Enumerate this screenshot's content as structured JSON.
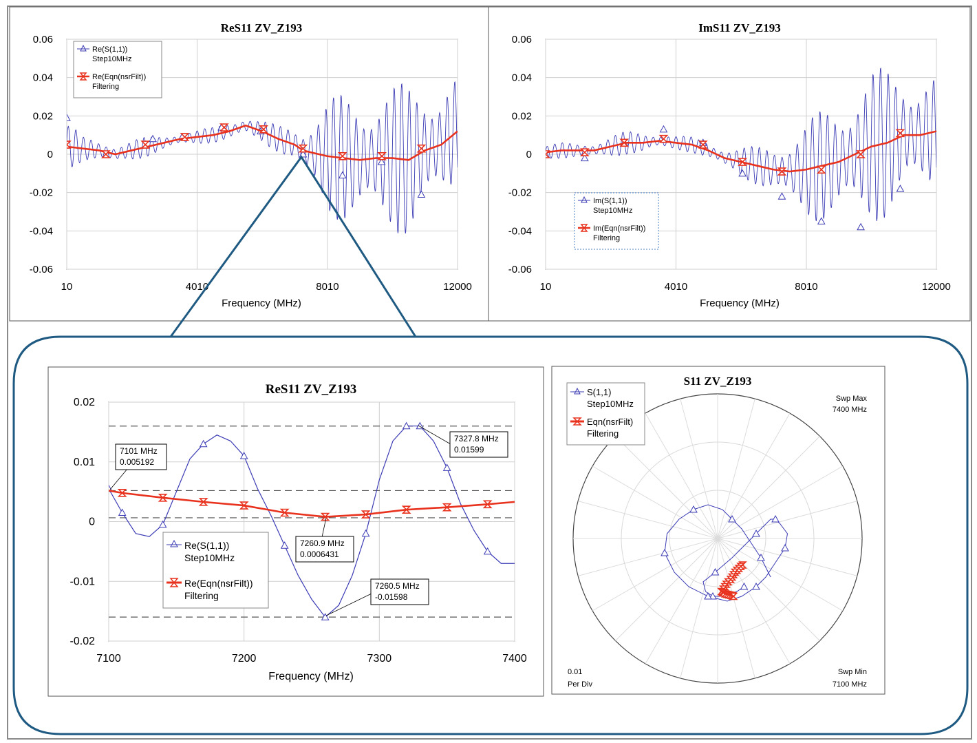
{
  "colors": {
    "measured": "#3b3bb5",
    "filtered": "#e8321e",
    "frame": "#8a8a8a",
    "callout": "#1f5a82",
    "grid": "#cfcfcf"
  },
  "chart_data": [
    {
      "id": "re_full",
      "type": "line",
      "title": "ReS11 ZV_Z193",
      "xlabel": "Frequency (MHz)",
      "ylabel": "",
      "xlim": [
        10,
        12000
      ],
      "ylim": [
        -0.06,
        0.06
      ],
      "x_ticks": [
        "10",
        "4010",
        "8010",
        "12000"
      ],
      "x_tick_values": [
        10,
        4010,
        8010,
        12000
      ],
      "y_ticks": [
        "0.06",
        "0.04",
        "0.02",
        "0",
        "-0.02",
        "-0.04",
        "-0.06"
      ],
      "y_tick_values": [
        0.06,
        0.04,
        0.02,
        0,
        -0.02,
        -0.04,
        -0.06
      ],
      "grid": true,
      "legend": {
        "position": "top-left",
        "entries": [
          {
            "label": "Re(S(1,1))",
            "sub": "Step10MHz",
            "series": "measured"
          },
          {
            "label": "Re(Eqn(nsrFilt))",
            "sub": "Filtering",
            "series": "filtered"
          }
        ]
      },
      "series": [
        {
          "name": "Re(S(1,1)) Step10MHz",
          "color": "#3b3bb5",
          "marker": "triangle",
          "x": [
            10,
            500,
            1000,
            1500,
            2000,
            2500,
            3000,
            3500,
            4000,
            4500,
            5000,
            5500,
            6000,
            6500,
            7000,
            7260,
            7500,
            8000,
            8500,
            9000,
            9500,
            10000,
            10500,
            11000,
            11500,
            12000
          ],
          "amp": [
            0.015,
            0.006,
            0.005,
            0.006,
            0.006,
            0.005,
            0.004,
            0.004,
            0.004,
            0.004,
            0.005,
            0.006,
            0.006,
            0.007,
            0.01,
            0.014,
            0.02,
            0.03,
            0.034,
            0.036,
            0.038,
            0.039,
            0.04,
            0.039,
            0.036,
            0.03
          ],
          "markers_x": [
            10,
            2650,
            3550,
            4760,
            5960,
            7260,
            8470,
            9670,
            10890
          ],
          "markers_y": [
            0.019,
            0.008,
            0.009,
            0.014,
            0.012,
            0.0,
            -0.011,
            -0.004,
            -0.021
          ]
        },
        {
          "name": "Re(Eqn(nsrFilt)) Filtering",
          "color": "#e8321e",
          "marker": "hourglass",
          "x": [
            10,
            500,
            1000,
            1500,
            2000,
            2500,
            3000,
            3500,
            4000,
            4500,
            5000,
            5500,
            6000,
            6500,
            7000,
            7260,
            7500,
            8000,
            8500,
            9000,
            9500,
            10000,
            10500,
            11000,
            11500,
            12000
          ],
          "y": [
            0.004,
            0.003,
            0.002,
            0.0,
            0.002,
            0.004,
            0.006,
            0.008,
            0.009,
            0.01,
            0.012,
            0.015,
            0.012,
            0.008,
            0.005,
            0.002,
            0.001,
            -0.001,
            -0.002,
            -0.003,
            -0.002,
            -0.002,
            -0.003,
            0.002,
            0.005,
            0.012
          ],
          "markers_x": [
            10,
            1210,
            2420,
            3630,
            4840,
            6050,
            7260,
            8470,
            9680,
            10890
          ],
          "markers_y": [
            0.005,
            0.0,
            0.005,
            0.009,
            0.014,
            0.013,
            0.003,
            -0.001,
            -0.001,
            0.003
          ]
        }
      ]
    },
    {
      "id": "im_full",
      "type": "line",
      "title": "ImS11 ZV_Z193",
      "xlabel": "Frequency (MHz)",
      "ylabel": "",
      "xlim": [
        10,
        12000
      ],
      "ylim": [
        -0.06,
        0.06
      ],
      "x_ticks": [
        "10",
        "4010",
        "8010",
        "12000"
      ],
      "x_tick_values": [
        10,
        4010,
        8010,
        12000
      ],
      "y_ticks": [
        "0.06",
        "0.04",
        "0.02",
        "0",
        "-0.02",
        "-0.04",
        "-0.06"
      ],
      "y_tick_values": [
        0.06,
        0.04,
        0.02,
        0,
        -0.02,
        -0.04,
        -0.06
      ],
      "grid": true,
      "legend": {
        "position": "bottom-left",
        "entries": [
          {
            "label": "Im(S(1,1))",
            "sub": "Step10MHz",
            "series": "measured"
          },
          {
            "label": "Im(Eqn(nsrFilt))",
            "sub": "Filtering",
            "series": "filtered"
          }
        ]
      },
      "series": [
        {
          "name": "Im(S(1,1)) Step10MHz",
          "color": "#3b3bb5",
          "marker": "triangle",
          "x": [
            10,
            500,
            1000,
            1500,
            2000,
            2500,
            3000,
            3500,
            4000,
            4500,
            5000,
            5500,
            6000,
            6500,
            7000,
            7500,
            8000,
            8500,
            9000,
            9500,
            10000,
            10500,
            11000,
            11500,
            12000
          ],
          "center": [
            0.001,
            0.002,
            0.002,
            0.002,
            0.004,
            0.006,
            0.006,
            0.007,
            0.006,
            0.005,
            0.002,
            -0.002,
            -0.004,
            -0.006,
            -0.008,
            -0.009,
            -0.008,
            -0.006,
            -0.004,
            0.0,
            0.004,
            0.006,
            0.01,
            0.01,
            0.012
          ],
          "amp": [
            0.004,
            0.004,
            0.004,
            0.005,
            0.006,
            0.006,
            0.006,
            0.005,
            0.004,
            0.004,
            0.005,
            0.006,
            0.008,
            0.01,
            0.014,
            0.02,
            0.025,
            0.03,
            0.034,
            0.037,
            0.04,
            0.04,
            0.038,
            0.035,
            0.03
          ],
          "markers_x": [
            10,
            1210,
            2420,
            3630,
            4840,
            6050,
            7260,
            8470,
            9680,
            10890
          ],
          "markers_y": [
            0.0,
            -0.002,
            0.006,
            0.013,
            0.006,
            -0.01,
            -0.022,
            -0.035,
            -0.038,
            -0.018
          ]
        },
        {
          "name": "Im(Eqn(nsrFilt)) Filtering",
          "color": "#e8321e",
          "marker": "hourglass",
          "x": [
            10,
            500,
            1000,
            1500,
            2000,
            2500,
            3000,
            3500,
            4000,
            4500,
            5000,
            5500,
            6000,
            6500,
            7000,
            7500,
            8000,
            8500,
            9000,
            9500,
            10000,
            10500,
            11000,
            11500,
            12000
          ],
          "y": [
            0.001,
            0.002,
            0.002,
            0.002,
            0.004,
            0.006,
            0.006,
            0.007,
            0.006,
            0.005,
            0.002,
            -0.002,
            -0.004,
            -0.006,
            -0.008,
            -0.009,
            -0.008,
            -0.006,
            -0.004,
            0.0,
            0.004,
            0.006,
            0.01,
            0.01,
            0.012
          ],
          "markers_x": [
            10,
            1210,
            2420,
            3630,
            4840,
            6050,
            7260,
            8470,
            9680,
            10890
          ],
          "markers_y": [
            0.0,
            0.001,
            0.006,
            0.008,
            0.005,
            -0.004,
            -0.009,
            -0.008,
            0.0,
            0.011
          ]
        }
      ]
    },
    {
      "id": "re_zoom",
      "type": "line",
      "title": "ReS11 ZV_Z193",
      "xlabel": "Frequency (MHz)",
      "ylabel": "",
      "xlim": [
        7100,
        7400
      ],
      "ylim": [
        -0.02,
        0.02
      ],
      "x_ticks": [
        "7100",
        "7200",
        "7300",
        "7400"
      ],
      "x_tick_values": [
        7100,
        7200,
        7300,
        7400
      ],
      "y_ticks": [
        "0.02",
        "0.01",
        "0",
        "-0.01",
        "-0.02"
      ],
      "y_tick_values": [
        0.02,
        0.01,
        0,
        -0.01,
        -0.02
      ],
      "grid": true,
      "hlines": [
        0.01599,
        0.005192,
        0.0006431,
        -0.01598
      ],
      "legend": {
        "position": "bottom-left",
        "entries": [
          {
            "label": "Re(S(1,1))",
            "sub": "Step10MHz",
            "series": "measured"
          },
          {
            "label": "Re(Eqn(nsrFilt))",
            "sub": "Filtering",
            "series": "filtered"
          }
        ]
      },
      "annotations": [
        {
          "line1": "7101 MHz",
          "line2": "0.005192",
          "x": 7101,
          "y": 0.005192
        },
        {
          "line1": "7327.8 MHz",
          "line2": "0.01599",
          "x": 7327.8,
          "y": 0.01599
        },
        {
          "line1": "7260.9 MHz",
          "line2": "0.0006431",
          "x": 7260.9,
          "y": 0.0006431
        },
        {
          "line1": "7260.5 MHz",
          "line2": "-0.01598",
          "x": 7260.5,
          "y": -0.01598
        }
      ],
      "series": [
        {
          "name": "Re(S(1,1)) Step10MHz",
          "color": "#3b3bb5",
          "marker": "triangle",
          "x": [
            7100,
            7110,
            7120,
            7130,
            7140,
            7150,
            7160,
            7170,
            7180,
            7190,
            7200,
            7210,
            7220,
            7230,
            7240,
            7250,
            7260,
            7270,
            7280,
            7290,
            7300,
            7310,
            7320,
            7330,
            7340,
            7350,
            7360,
            7370,
            7380,
            7390,
            7400
          ],
          "y": [
            0.0055,
            0.0015,
            -0.002,
            -0.0025,
            -0.0005,
            0.005,
            0.0105,
            0.013,
            0.0145,
            0.0135,
            0.011,
            0.0055,
            0.001,
            -0.004,
            -0.009,
            -0.013,
            -0.016,
            -0.014,
            -0.009,
            -0.002,
            0.007,
            0.0135,
            0.016,
            0.016,
            0.0135,
            0.009,
            0.003,
            -0.0015,
            -0.005,
            -0.007,
            -0.007
          ],
          "markers_x": [
            7100,
            7110,
            7140,
            7170,
            7200,
            7230,
            7260,
            7290,
            7320,
            7330,
            7350,
            7380
          ],
          "markers_y": [
            0.0055,
            0.0015,
            -0.0005,
            0.013,
            0.011,
            -0.004,
            -0.016,
            -0.002,
            0.016,
            0.016,
            0.009,
            -0.005
          ]
        },
        {
          "name": "Re(Eqn(nsrFilt)) Filtering",
          "color": "#e8321e",
          "marker": "hourglass",
          "x": [
            7100,
            7110,
            7140,
            7170,
            7200,
            7230,
            7260,
            7290,
            7320,
            7350,
            7380,
            7400
          ],
          "y": [
            0.0052,
            0.0048,
            0.004,
            0.0033,
            0.0027,
            0.0015,
            0.0008,
            0.0012,
            0.002,
            0.0024,
            0.0029,
            0.0033
          ],
          "markers_x": [
            7110,
            7140,
            7170,
            7200,
            7230,
            7260,
            7290,
            7320,
            7350,
            7380
          ],
          "markers_y": [
            0.0048,
            0.004,
            0.0033,
            0.0027,
            0.0015,
            0.0008,
            0.0012,
            0.002,
            0.0024,
            0.0029
          ]
        }
      ]
    },
    {
      "id": "s11_polar",
      "type": "scatter",
      "title": "S11 ZV_Z193",
      "plot": "polar",
      "swp_max_label": "Swp Max",
      "swp_max_value": "7400  MHz",
      "swp_min_label": "Swp Min",
      "swp_min_value": "7100  MHz",
      "per_div_value": "0.01",
      "per_div_label": "Per Div",
      "radius_max": 0.03,
      "legend": {
        "position": "top-left",
        "entries": [
          {
            "label": "S(1,1)",
            "sub": "Step10MHz",
            "series": "measured"
          },
          {
            "label": "Eqn(nsrFilt)",
            "sub": "Filtering",
            "series": "filtered"
          }
        ]
      },
      "series": [
        {
          "name": "S(1,1) Step10MHz",
          "color": "#3b3bb5",
          "marker": "triangle",
          "re": [
            0.0055,
            0.004,
            0.0015,
            -0.001,
            -0.0025,
            -0.003,
            -0.0005,
            0.003,
            0.005,
            0.008,
            0.01,
            0.011,
            0.012,
            0.013,
            0.0145,
            0.014,
            0.012,
            0.01,
            0.008,
            0.005,
            0.002,
            -0.002,
            -0.006,
            -0.009,
            -0.011,
            -0.0105,
            -0.008,
            -0.005,
            -0.002,
            0.001,
            0.003,
            0.005,
            0.007,
            0.009,
            0.01,
            0.011
          ],
          "im": [
            -0.01,
            -0.011,
            -0.012,
            -0.012,
            -0.011,
            -0.009,
            -0.007,
            -0.004,
            -0.002,
            0.001,
            0.003,
            0.004,
            0.004,
            0.003,
            0.001,
            -0.002,
            -0.005,
            -0.008,
            -0.01,
            -0.012,
            -0.013,
            -0.012,
            -0.01,
            -0.007,
            -0.003,
            0.001,
            0.004,
            0.006,
            0.007,
            0.006,
            0.004,
            0.002,
            -0.001,
            -0.004,
            -0.006,
            -0.008
          ]
        },
        {
          "name": "Eqn(nsrFilt) Filtering",
          "color": "#e8321e",
          "marker": "hourglass",
          "re": [
            0.0052,
            0.0048,
            0.0044,
            0.004,
            0.0036,
            0.0033,
            0.003,
            0.0027,
            0.0022,
            0.0018,
            0.0015,
            0.0012,
            0.0008,
            0.001,
            0.0012,
            0.0016,
            0.002,
            0.0024,
            0.0028,
            0.0031,
            0.0033
          ],
          "im": [
            -0.0055,
            -0.0058,
            -0.0062,
            -0.0066,
            -0.007,
            -0.0075,
            -0.008,
            -0.0085,
            -0.009,
            -0.0095,
            -0.01,
            -0.0105,
            -0.011,
            -0.0112,
            -0.0113,
            -0.0115,
            -0.0116,
            -0.0117,
            -0.0118,
            -0.0119,
            -0.012
          ]
        }
      ]
    }
  ]
}
